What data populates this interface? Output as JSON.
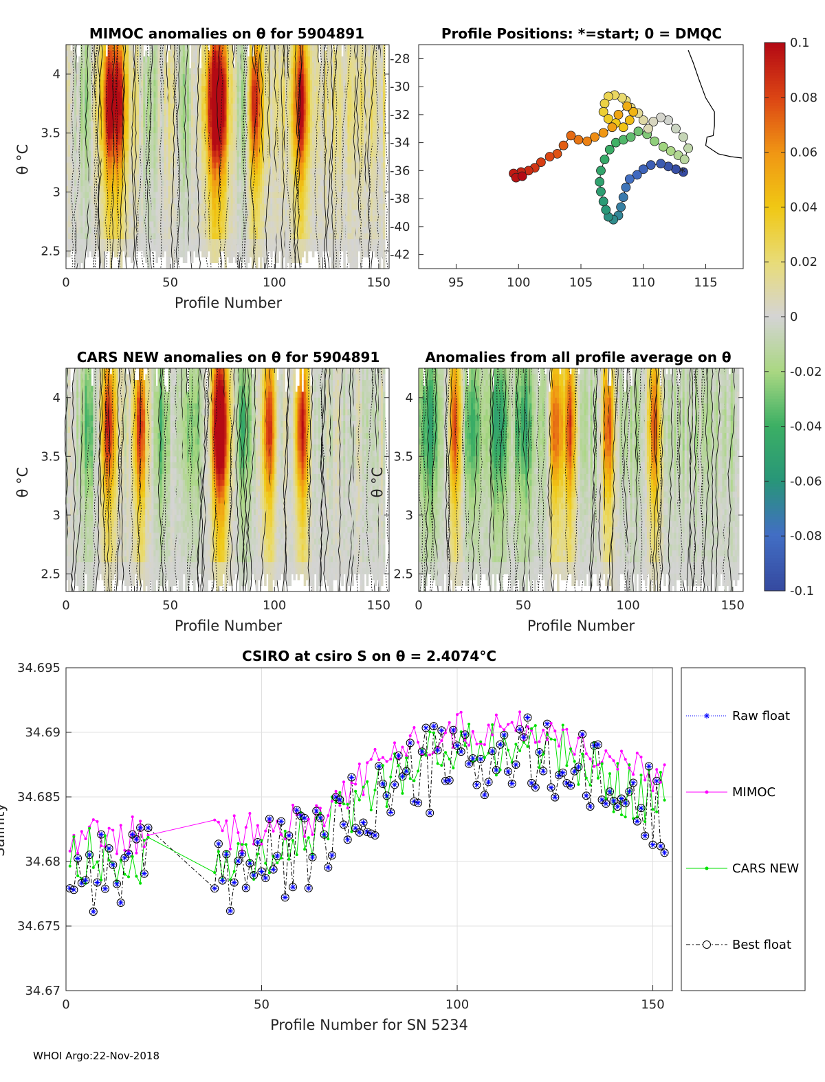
{
  "chart_data": [
    {
      "type": "heatmap",
      "title": "MIMOC anomalies on θ  for 5904891",
      "xlabel": "Profile Number",
      "ylabel": "θ °C",
      "xlim": [
        0,
        155
      ],
      "ylim": [
        2.35,
        4.25
      ],
      "xticks": [
        0,
        50,
        100,
        150
      ],
      "yticks": [
        2.5,
        3,
        3.5,
        4
      ],
      "hot_profiles": [
        20,
        25,
        70,
        74,
        90,
        112
      ],
      "cold_profiles": [
        8,
        40,
        56,
        85
      ],
      "base": 0.012,
      "seed": 7
    },
    {
      "type": "scatter",
      "title": "Profile Positions: *=start; 0 = DMQC",
      "xlim": [
        92,
        118
      ],
      "ylim": [
        -43,
        -27
      ],
      "xticks": [
        95,
        100,
        105,
        110,
        115
      ],
      "yticks": [
        -28,
        -30,
        -32,
        -34,
        -36,
        -38,
        -40,
        -42
      ]
    },
    {
      "type": "heatmap",
      "title": "CARS NEW anomalies on θ for 5904891",
      "xlabel": "Profile Number",
      "ylabel": "θ °C",
      "xlim": [
        0,
        155
      ],
      "ylim": [
        2.35,
        4.25
      ],
      "xticks": [
        0,
        50,
        100,
        150
      ],
      "yticks": [
        2.5,
        3,
        3.5,
        4
      ],
      "hot_profiles": [
        20,
        35,
        72,
        75,
        97,
        113
      ],
      "cold_profiles": [
        10,
        45,
        60,
        85
      ],
      "base": 0.0,
      "seed": 13
    },
    {
      "type": "heatmap",
      "title": "Anomalies from all profile average on θ",
      "xlabel": "Profile Number",
      "ylabel": "θ °C",
      "xlim": [
        0,
        155
      ],
      "ylim": [
        2.35,
        4.25
      ],
      "xticks": [
        0,
        50,
        100,
        150
      ],
      "yticks": [
        2.5,
        3,
        3.5,
        4
      ],
      "hot_profiles": [
        17,
        65,
        72,
        90,
        112
      ],
      "cold_profiles": [
        5,
        25,
        38,
        50
      ],
      "base": -0.01,
      "seed": 21
    },
    {
      "type": "line",
      "title": "CSIRO at csiro S on θ = 2.4074°C",
      "xlabel": "Profile Number for SN 5234",
      "ylabel": "Salinity",
      "xlim": [
        0,
        155
      ],
      "ylim": [
        34.67,
        34.695
      ],
      "xticks": [
        0,
        50,
        100,
        150
      ],
      "yticks": [
        34.67,
        34.675,
        34.68,
        34.685,
        34.69,
        34.695
      ],
      "series": [
        {
          "name": "Raw float",
          "color": "#0000ff"
        },
        {
          "name": "MIMOC",
          "color": "#ff00ff"
        },
        {
          "name": "CARS NEW",
          "color": "#00e000"
        },
        {
          "name": "Best float",
          "color": "#000000"
        }
      ]
    }
  ],
  "colorbar": {
    "min": -0.1,
    "max": 0.1,
    "ticks": [
      "0.1",
      "0.08",
      "0.06",
      "0.04",
      "0.02",
      "0",
      "-0.02",
      "-0.04",
      "-0.06",
      "-0.08",
      "-0.1"
    ]
  },
  "footer": "WHOI Argo:22-Nov-2018"
}
